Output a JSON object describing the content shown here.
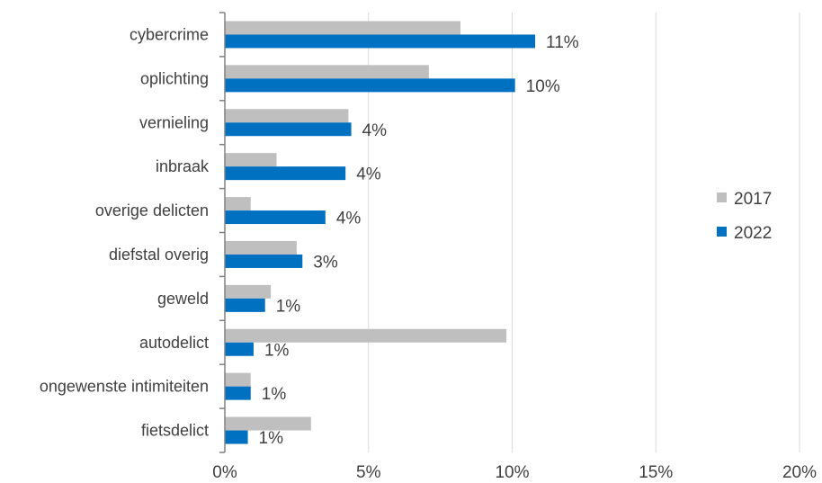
{
  "chart_data": {
    "type": "bar",
    "orientation": "horizontal",
    "categories": [
      "cybercrime",
      "oplichting",
      "vernieling",
      "inbraak",
      "overige delicten",
      "diefstal overig",
      "geweld",
      "autodelict",
      "ongewenste intimiteiten",
      "fietsdelict"
    ],
    "series": [
      {
        "name": "2017",
        "color": "#bfbfbf",
        "values": [
          8.2,
          7.1,
          4.3,
          1.8,
          0.9,
          2.5,
          1.6,
          9.8,
          0.9,
          3.0
        ]
      },
      {
        "name": "2022",
        "color": "#0070c0",
        "values": [
          10.8,
          10.1,
          4.4,
          4.2,
          3.5,
          2.7,
          1.4,
          1.0,
          0.9,
          0.8
        ],
        "data_labels": [
          "11%",
          "10%",
          "4%",
          "4%",
          "4%",
          "3%",
          "1%",
          "1%",
          "1%",
          "1%"
        ]
      }
    ],
    "x_ticks": [
      "0%",
      "5%",
      "10%",
      "15%",
      "20%"
    ],
    "x_tick_values": [
      0,
      5,
      10,
      15,
      20
    ],
    "xlim": [
      0,
      20
    ],
    "grid": "vertical",
    "legend_position": "right"
  }
}
